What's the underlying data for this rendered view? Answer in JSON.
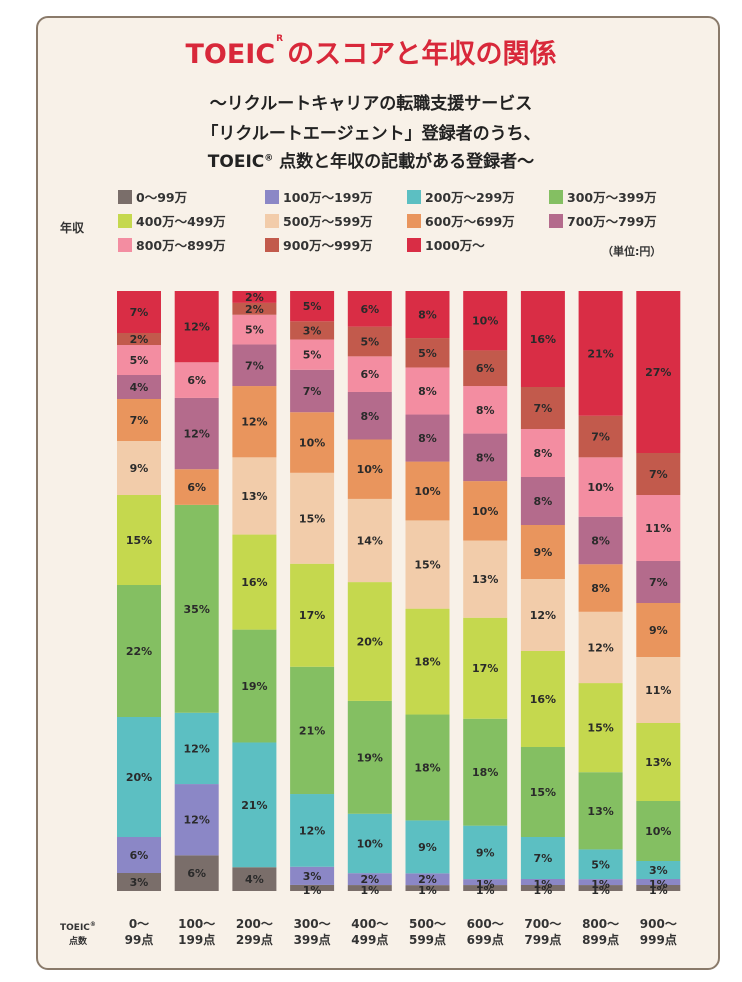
{
  "header": {
    "title_main": "TOEIC",
    "title_mark": "R",
    "title_rest": "のスコアと年収の関係",
    "subtitle_line1": "～リクルートキャリアの転職支援サービス",
    "subtitle_line2": "「リクルートエージェント」登録者のうち、",
    "subtitle_line3_a": "TOEIC",
    "subtitle_line3_mark": "®",
    "subtitle_line3_b": " 点数と年収の記載がある登録者～"
  },
  "legend_label": "年収",
  "unit_label": "（単位:円）",
  "xaxis_label_a": "TOEIC",
  "xaxis_label_mark": "®",
  "xaxis_label_b": "点数",
  "chart_data": {
    "type": "bar",
    "stacked": true,
    "orientation": "vertical",
    "categories": [
      [
        "0～",
        "99点"
      ],
      [
        "100～",
        "199点"
      ],
      [
        "200～",
        "299点"
      ],
      [
        "300～",
        "399点"
      ],
      [
        "400～",
        "499点"
      ],
      [
        "500～",
        "599点"
      ],
      [
        "600～",
        "699点"
      ],
      [
        "700～",
        "799点"
      ],
      [
        "800～",
        "899点"
      ],
      [
        "900～",
        "999点"
      ]
    ],
    "series": [
      {
        "name": "0～99万",
        "color": "#7a6e6a",
        "values": [
          3,
          6,
          4,
          1,
          1,
          1,
          1,
          1,
          1,
          1
        ]
      },
      {
        "name": "100万～199万",
        "color": "#8b87c6",
        "values": [
          6,
          12,
          0,
          3,
          2,
          2,
          1,
          1,
          1,
          1
        ]
      },
      {
        "name": "200万～299万",
        "color": "#5cbfc2",
        "values": [
          20,
          12,
          21,
          12,
          10,
          9,
          9,
          7,
          5,
          3
        ]
      },
      {
        "name": "300万～399万",
        "color": "#84bf62",
        "values": [
          22,
          35,
          19,
          21,
          19,
          18,
          18,
          15,
          13,
          10
        ]
      },
      {
        "name": "400万～499万",
        "color": "#c5d84e",
        "values": [
          15,
          0,
          16,
          17,
          20,
          18,
          17,
          16,
          15,
          13
        ]
      },
      {
        "name": "500万～599万",
        "color": "#f2ccaa",
        "values": [
          9,
          0,
          13,
          15,
          14,
          15,
          13,
          12,
          12,
          11
        ]
      },
      {
        "name": "600万～699万",
        "color": "#e9955d",
        "values": [
          7,
          6,
          12,
          10,
          10,
          10,
          10,
          9,
          8,
          9
        ]
      },
      {
        "name": "700万～799万",
        "color": "#b46b8c",
        "values": [
          4,
          12,
          7,
          7,
          8,
          8,
          8,
          8,
          8,
          7
        ]
      },
      {
        "name": "800万～899万",
        "color": "#f38da1",
        "values": [
          5,
          6,
          5,
          5,
          6,
          8,
          8,
          8,
          10,
          11
        ]
      },
      {
        "name": "900万～999万",
        "color": "#c25a4c",
        "values": [
          2,
          0,
          2,
          3,
          5,
          5,
          6,
          7,
          7,
          7
        ]
      },
      {
        "name": "1000万～",
        "color": "#d92d45",
        "values": [
          7,
          12,
          2,
          5,
          6,
          8,
          10,
          16,
          21,
          27
        ]
      }
    ],
    "value_suffix": "%",
    "ylim": [
      0,
      100
    ]
  }
}
